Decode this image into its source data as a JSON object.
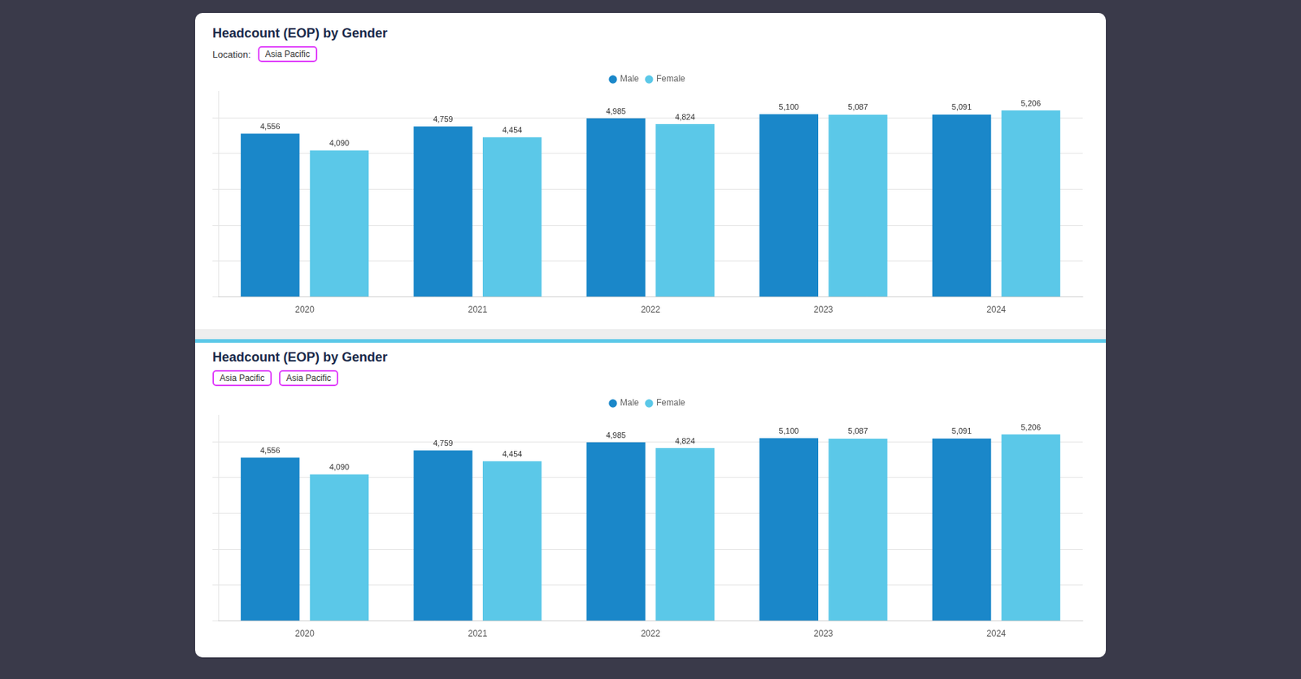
{
  "chart_data": [
    {
      "type": "bar",
      "title": "Headcount (EOP) by Gender",
      "annotations": [
        "Location:",
        "Asia Pacific"
      ],
      "categories": [
        "2020",
        "2021",
        "2022",
        "2023",
        "2024"
      ],
      "series": [
        {
          "name": "Male",
          "color": "#1a87c9",
          "values": [
            4556,
            4759,
            4985,
            5100,
            5091
          ],
          "value_labels": [
            "4,556",
            "4,759",
            "4,985",
            "5,100",
            "5,091"
          ]
        },
        {
          "name": "Female",
          "color": "#5bc8e8",
          "values": [
            4090,
            4454,
            4824,
            5087,
            5206
          ],
          "value_labels": [
            "4,090",
            "4,454",
            "4,824",
            "5,087",
            "5,206"
          ]
        }
      ],
      "ylim": [
        0,
        5750
      ],
      "yticks": [
        0,
        1000,
        2000,
        3000,
        4000,
        5000
      ],
      "grid": true,
      "legend": "top",
      "data_labels": true,
      "tick_labels": "x"
    },
    {
      "type": "bar",
      "title": "Headcount (EOP) by Gender",
      "annotations": [
        "Asia Pacific",
        "Asia Pacific"
      ],
      "categories": [
        "2020",
        "2021",
        "2022",
        "2023",
        "2024"
      ],
      "series": [
        {
          "name": "Male",
          "color": "#1a87c9",
          "values": [
            4556,
            4759,
            4985,
            5100,
            5091
          ],
          "value_labels": [
            "4,556",
            "4,759",
            "4,985",
            "5,100",
            "5,091"
          ]
        },
        {
          "name": "Female",
          "color": "#5bc8e8",
          "values": [
            4090,
            4454,
            4824,
            5087,
            5206
          ],
          "value_labels": [
            "4,090",
            "4,454",
            "4,824",
            "5,087",
            "5,206"
          ]
        }
      ],
      "ylim": [
        0,
        5750
      ],
      "yticks": [
        0,
        1000,
        2000,
        3000,
        4000,
        5000
      ],
      "grid": true,
      "legend": "top",
      "data_labels": true,
      "tick_labels": "x"
    }
  ]
}
